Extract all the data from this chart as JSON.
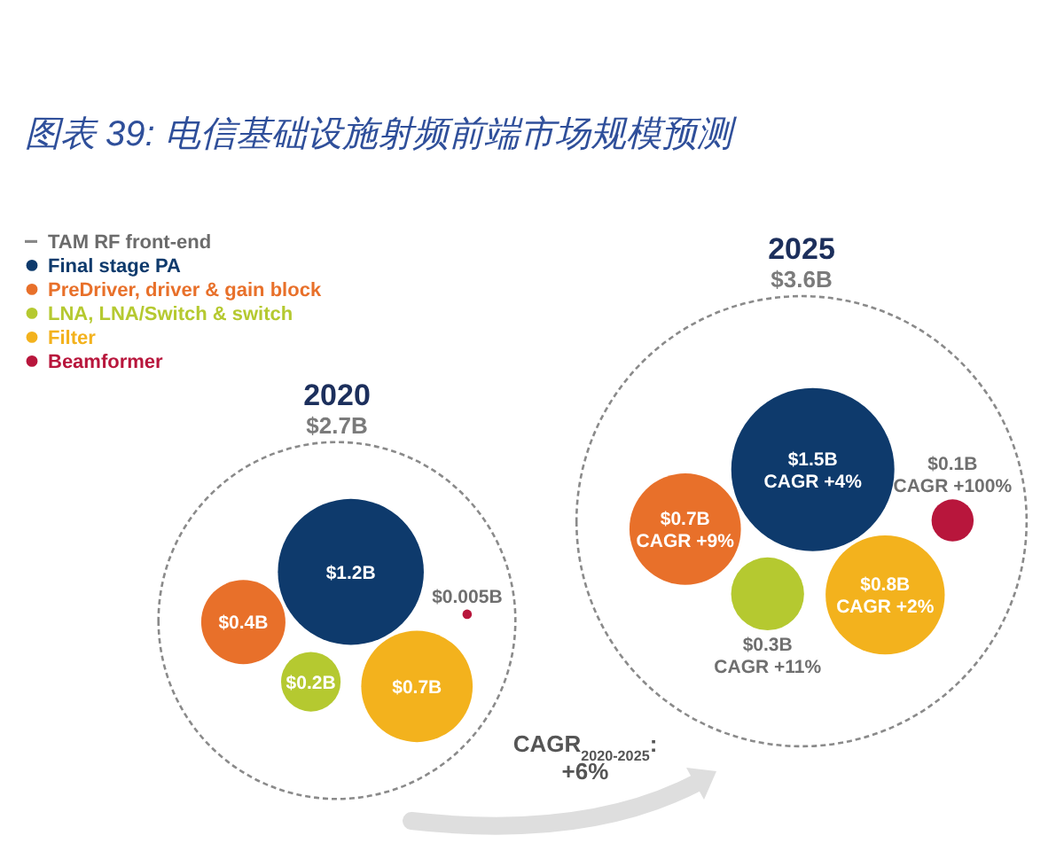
{
  "chart_data": {
    "type": "other",
    "title": "图表 39: 电信基础设施射频前端市场规模预测",
    "categories": [
      "2020",
      "2025"
    ],
    "legend": "top left",
    "legend_title": "TAM RF front-end",
    "series": [
      {
        "name": "Final stage PA",
        "color": "#0e3a6c",
        "values": [
          1.2,
          1.5
        ],
        "value_labels": [
          "$1.2B",
          "$1.5B"
        ]
      },
      {
        "name": "PreDriver, driver & gain block",
        "color": "#e8702a",
        "values": [
          0.4,
          0.7
        ],
        "value_labels": [
          "$0.4B",
          "$0.7B"
        ]
      },
      {
        "name": "LNA, LNA/Switch & switch",
        "color": "#b5c930",
        "values": [
          0.2,
          0.3
        ],
        "value_labels": [
          "$0.2B",
          "$0.3B"
        ]
      },
      {
        "name": "Filter",
        "color": "#f3b21d",
        "values": [
          0.7,
          0.8
        ],
        "value_labels": [
          "$0.7B",
          "$0.8B"
        ]
      },
      {
        "name": "Beamformer",
        "color": "#b8163c",
        "values": [
          0.005,
          0.1
        ],
        "value_labels": [
          "$0.005B",
          "$0.1B"
        ]
      }
    ],
    "totals": [
      "$2.7B",
      "$3.6B"
    ],
    "annotations": [
      "CAGR$_{2020-2025}$:\n+6%",
      "CAGR +4%",
      "CAGR +9%",
      "CAGR +11%",
      "CAGR +2%",
      "CAGR +100%"
    ]
  }
}
